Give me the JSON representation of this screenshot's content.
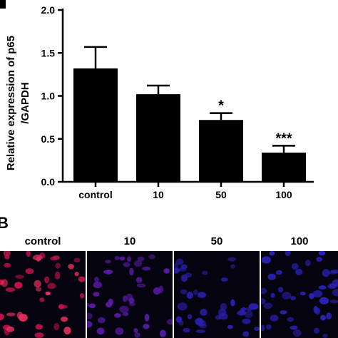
{
  "chart_data": {
    "type": "bar",
    "categories": [
      "control",
      "10",
      "50",
      "100"
    ],
    "values": [
      1.32,
      1.02,
      0.72,
      0.34
    ],
    "errors": [
      0.25,
      0.1,
      0.08,
      0.08
    ],
    "significance": [
      "",
      "",
      "*",
      "***"
    ],
    "ylabel_line1": "Relative expression of p65",
    "ylabel_line2": "/GAPDH",
    "xlabel": "",
    "ylim": [
      0.0,
      2.0
    ],
    "yticks": [
      "0.0",
      "0.5",
      "1.0",
      "1.5",
      "2.0"
    ],
    "bar_color": "#000000"
  },
  "panel_b": {
    "label": "B",
    "columns": [
      "control",
      "10",
      "50",
      "100"
    ],
    "stain_colors": [
      "#c4124a",
      "#5a1aa8",
      "#2a1fb0",
      "#2a22b8"
    ]
  }
}
